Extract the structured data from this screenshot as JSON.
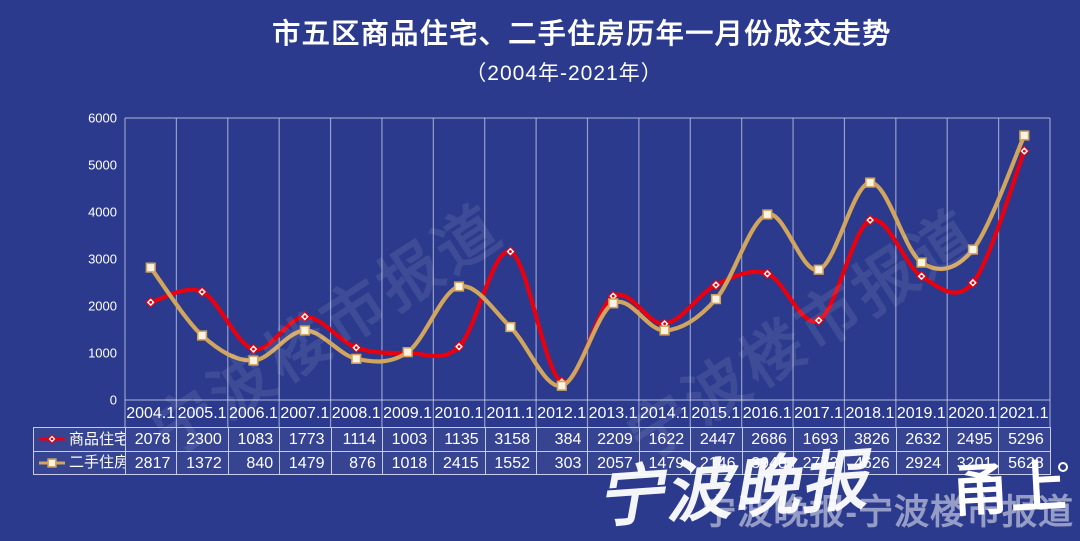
{
  "page": {
    "background": "#2B3A8C",
    "grid_color": "rgba(205,212,238,0.65)",
    "table_border_color": "rgba(222,228,247,0.85)"
  },
  "header": {
    "title": "市五区商品住宅、二手住房历年一月份成交走势",
    "subtitle": "（2004年-2021年）"
  },
  "chart_data": {
    "type": "line",
    "title": "市五区商品住宅、二手住房历年一月份成交走势",
    "subtitle": "（2004年-2021年）",
    "smooth": true,
    "grid": "vertical-only",
    "legend_position": "table-left",
    "categories": [
      "2004.1",
      "2005.1",
      "2006.1",
      "2007.1",
      "2008.1",
      "2009.1",
      "2010.1",
      "2011.1",
      "2012.1",
      "2013.1",
      "2014.1",
      "2015.1",
      "2016.1",
      "2017.1",
      "2018.1",
      "2019.1",
      "2020.1",
      "2021.1"
    ],
    "series": [
      {
        "name": "商品住宅",
        "color": "#E8000F",
        "marker": "diamond",
        "values": [
          2078,
          2300,
          1083,
          1773,
          1114,
          1003,
          1135,
          3158,
          384,
          2209,
          1622,
          2447,
          2686,
          1693,
          3826,
          2632,
          2495,
          5296
        ]
      },
      {
        "name": "二手住房",
        "color": "#D2A55E",
        "marker": "square",
        "values": [
          2817,
          1372,
          840,
          1479,
          876,
          1018,
          2415,
          1552,
          303,
          2057,
          1479,
          2146,
          3948,
          2772,
          4626,
          2924,
          3201,
          5628
        ]
      }
    ],
    "xlabel": "",
    "ylabel": "",
    "ylim": [
      0,
      6000
    ],
    "yticks": [
      0,
      1000,
      2000,
      3000,
      4000,
      5000,
      6000
    ]
  },
  "watermarks": {
    "diagonal": "宁波楼市报道",
    "bottom": "宁波晚报-宁波楼市报道",
    "script": "宁波晚报",
    "badge": "甬上"
  }
}
